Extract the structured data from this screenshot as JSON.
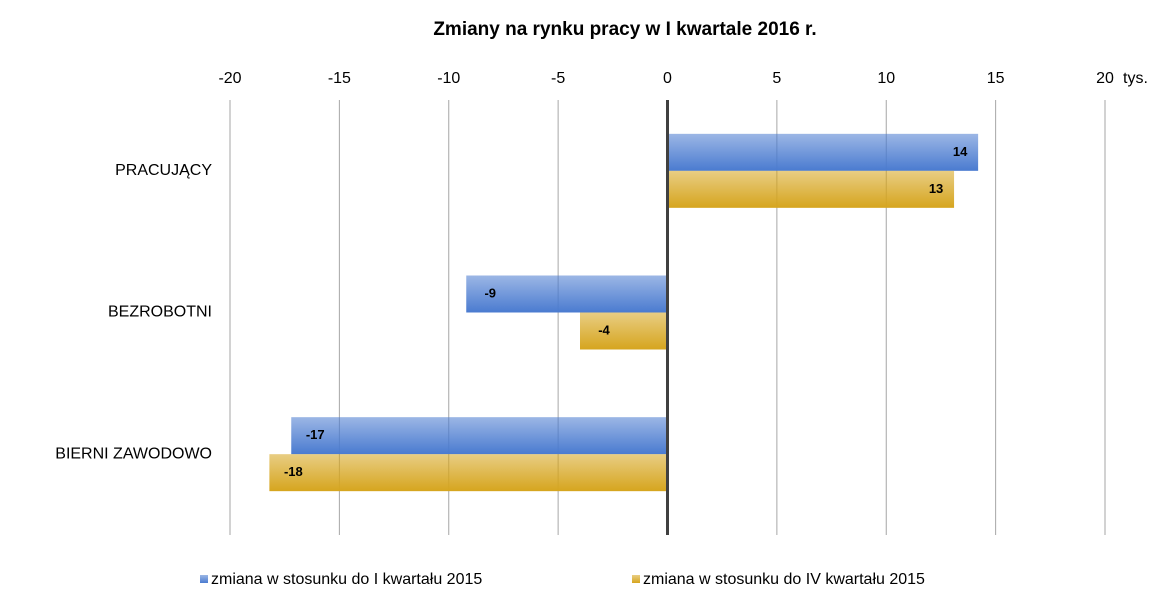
{
  "chart_data": {
    "type": "bar",
    "orientation": "horizontal",
    "title": "Zmiany na rynku pracy w I kwartale 2016 r.",
    "x_unit": "tys.",
    "categories": [
      "PRACUJĄCY",
      "BEZROBOTNI",
      "BIERNI ZAWODOWO"
    ],
    "series": [
      {
        "name": "zmiana w stosunku do I kwartału 2015",
        "color": "#4a7bd0",
        "values": [
          14.2,
          -9.2,
          -17.2
        ],
        "value_labels": [
          "14",
          "-9",
          "-17"
        ]
      },
      {
        "name": "zmiana w stosunku do IV kwartału 2015",
        "color": "#d6a51e",
        "values": [
          13.1,
          -4,
          -18.2
        ],
        "value_labels": [
          "13",
          "-4",
          "-18"
        ]
      }
    ],
    "xlim": [
      -20,
      20
    ],
    "xticks": [
      -20,
      -15,
      -10,
      -5,
      0,
      5,
      10,
      15,
      20
    ],
    "grid": true,
    "legend": "bottom"
  }
}
